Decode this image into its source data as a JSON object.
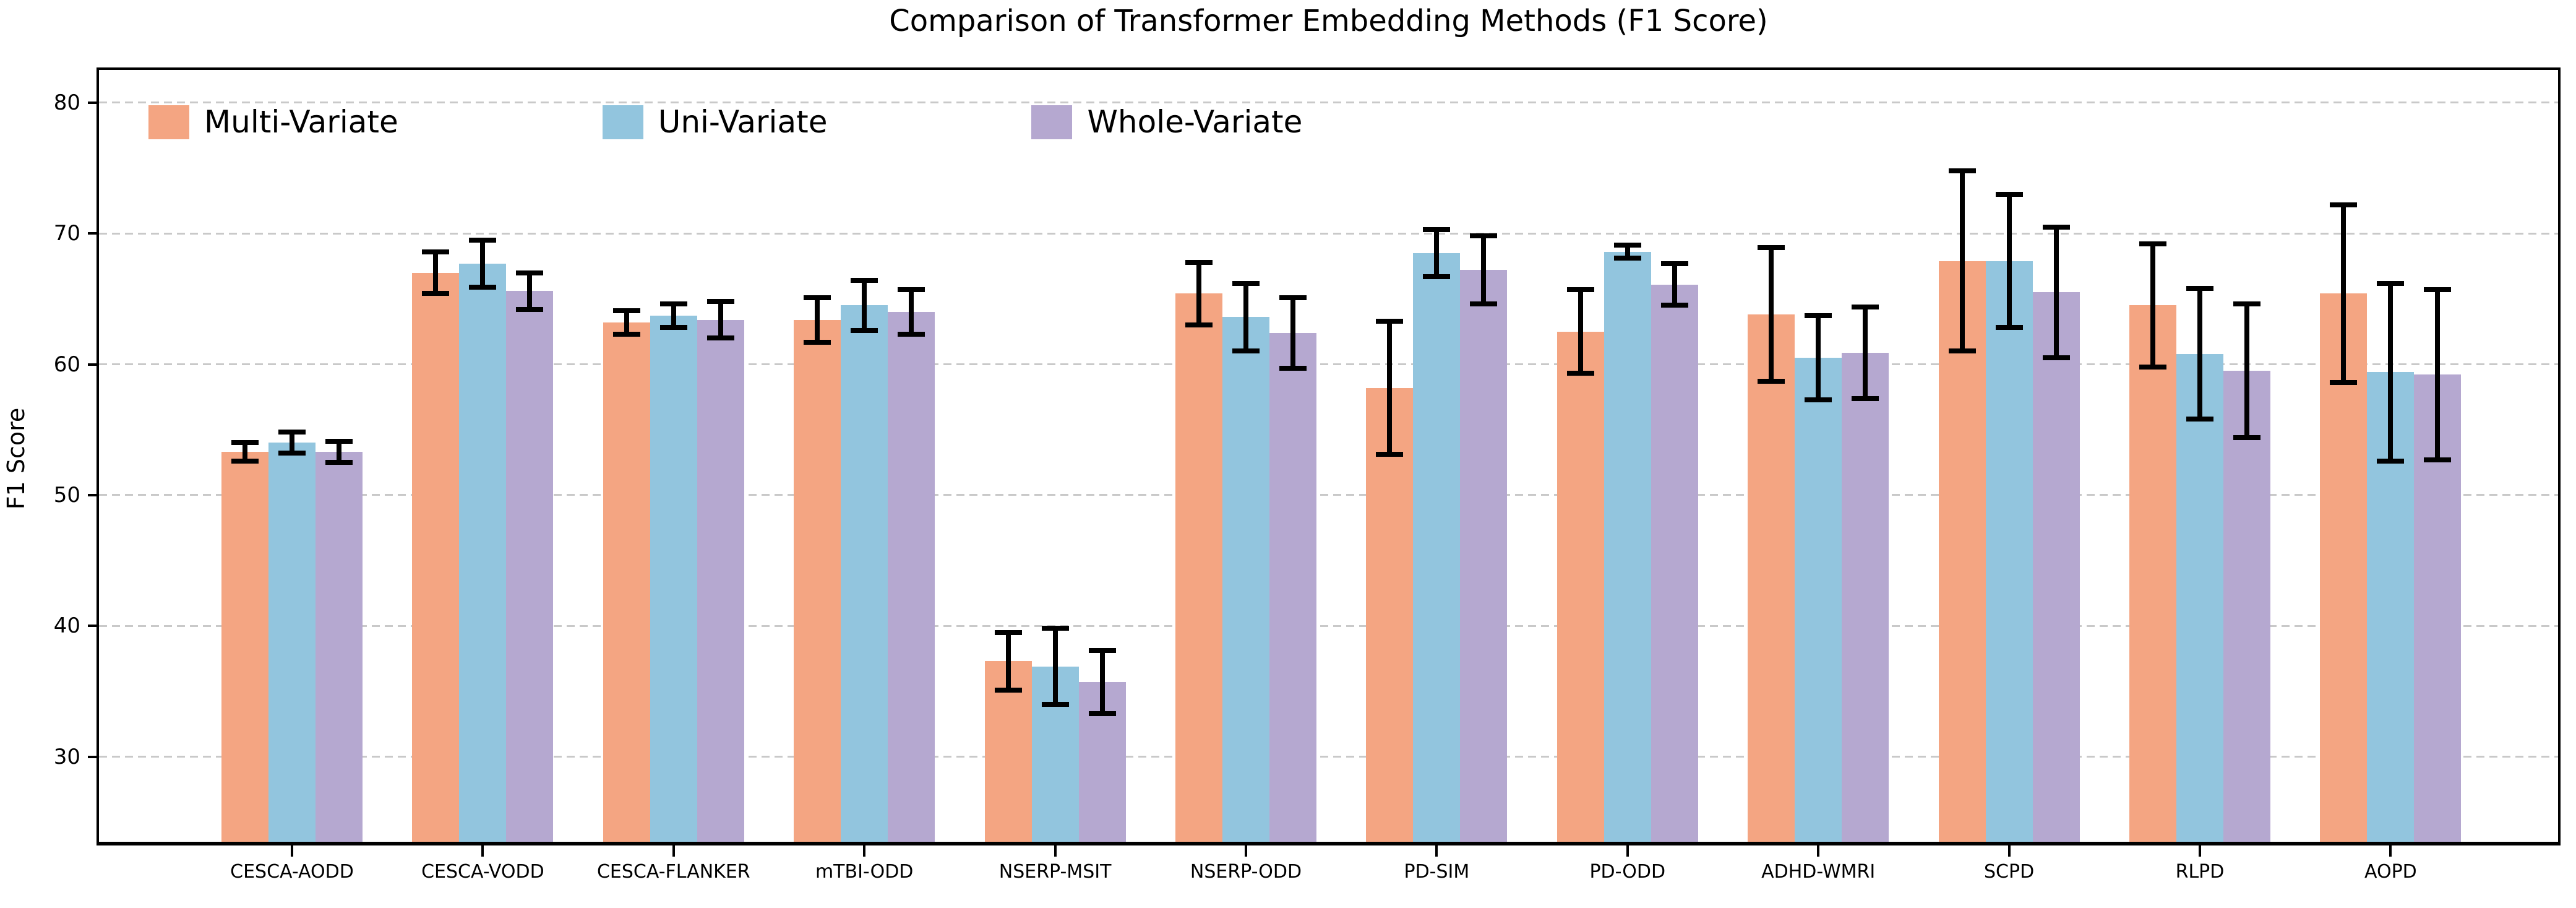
{
  "chart_data": {
    "type": "bar",
    "title": "Comparison of Transformer Embedding Methods (F1 Score)",
    "xlabel": "",
    "ylabel": "F1 Score",
    "ylim": [
      23.5,
      82.5
    ],
    "yticks": [
      30,
      40,
      50,
      60,
      70,
      80
    ],
    "grid": "horizontal dashed gridlines",
    "legend_position": "upper left, horizontal row, no frame",
    "error_bars": "symmetric, black, with caps",
    "categories": [
      "CESCA-AODD",
      "CESCA-VODD",
      "CESCA-FLANKER",
      "mTBI-ODD",
      "NSERP-MSIT",
      "NSERP-ODD",
      "PD-SIM",
      "PD-ODD",
      "ADHD-WMRI",
      "SCPD",
      "RLPD",
      "AOPD"
    ],
    "series": [
      {
        "name": "Multi-Variate",
        "color": "#F4A582",
        "values": [
          53.3,
          67.0,
          63.2,
          63.4,
          37.3,
          65.4,
          58.2,
          62.5,
          63.8,
          67.9,
          64.5,
          65.4
        ],
        "errors": [
          0.7,
          1.6,
          0.9,
          1.7,
          2.2,
          2.4,
          5.1,
          3.2,
          5.1,
          6.9,
          4.7,
          6.8
        ]
      },
      {
        "name": "Uni-Variate",
        "color": "#92C5DE",
        "values": [
          54.0,
          67.7,
          63.7,
          64.5,
          36.9,
          63.6,
          68.5,
          68.6,
          60.5,
          67.9,
          60.8,
          59.4
        ],
        "errors": [
          0.8,
          1.8,
          0.9,
          1.9,
          2.9,
          2.6,
          1.8,
          0.5,
          3.2,
          5.1,
          5.0,
          6.8
        ]
      },
      {
        "name": "Whole-Variate",
        "color": "#B5A8D0",
        "values": [
          53.3,
          65.6,
          63.4,
          64.0,
          35.7,
          62.4,
          67.2,
          66.1,
          60.9,
          65.5,
          59.5,
          59.2
        ],
        "errors": [
          0.8,
          1.4,
          1.4,
          1.7,
          2.4,
          2.7,
          2.6,
          1.6,
          3.5,
          5.0,
          5.1,
          6.5
        ]
      }
    ]
  }
}
